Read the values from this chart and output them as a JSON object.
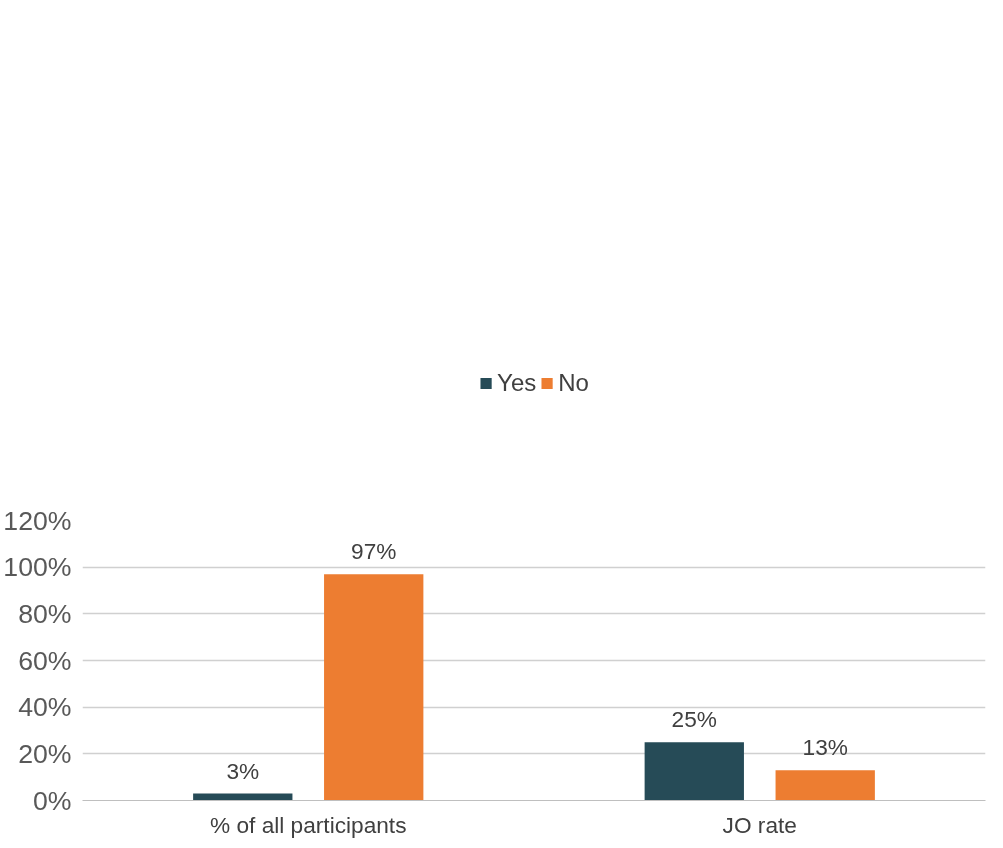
{
  "chart_data": {
    "type": "bar",
    "categories": [
      "% of all participants",
      "JO rate"
    ],
    "series": [
      {
        "name": "Yes",
        "color": "#264b57",
        "values": [
          3,
          25
        ],
        "value_labels": [
          "3%",
          "25%"
        ]
      },
      {
        "name": "No",
        "color": "#ed7d31",
        "values": [
          97,
          13
        ],
        "value_labels": [
          "97%",
          "13%"
        ]
      }
    ],
    "ylim": [
      0,
      120
    ],
    "yticks": [
      {
        "value": 0,
        "label": "0%"
      },
      {
        "value": 20,
        "label": "20%"
      },
      {
        "value": 40,
        "label": "40%"
      },
      {
        "value": 60,
        "label": "60%"
      },
      {
        "value": 80,
        "label": "80%"
      },
      {
        "value": 100,
        "label": "100%"
      },
      {
        "value": 120,
        "label": "120%"
      }
    ],
    "grid": "y",
    "legend": "top"
  }
}
